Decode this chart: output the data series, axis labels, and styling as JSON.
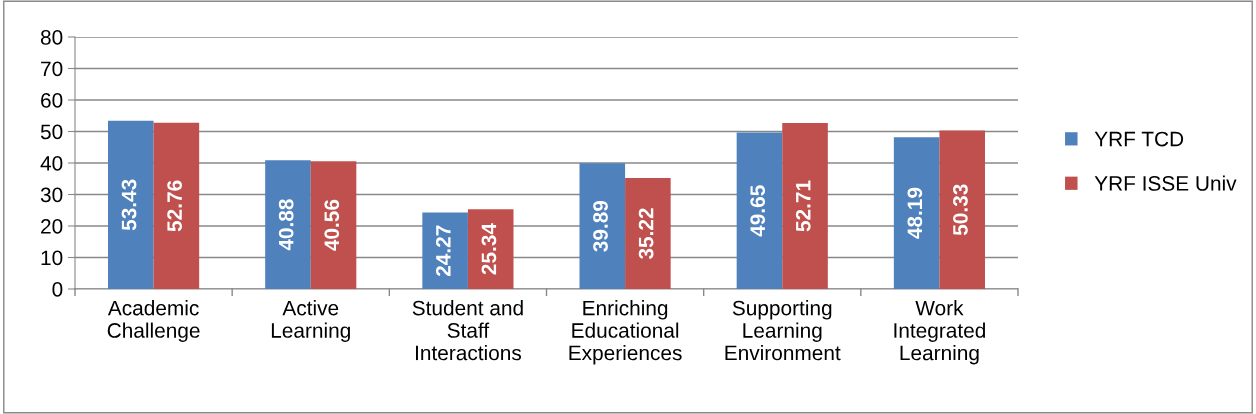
{
  "chart_data": {
    "type": "bar",
    "categories": [
      "Academic\nChallenge",
      "Active\nLearning",
      "Student and\nStaff\nInteractions",
      "Enriching\nEducational\nExperiences",
      "Supporting\nLearning\nEnvironment",
      "Work\nIntegrated\nLearning"
    ],
    "series": [
      {
        "name": "YRF TCD",
        "color": "#4f81bd",
        "values": [
          53.43,
          40.88,
          24.27,
          39.89,
          49.65,
          48.19
        ]
      },
      {
        "name": "YRF ISSE Univ",
        "color": "#c0504d",
        "values": [
          52.76,
          40.56,
          25.34,
          35.22,
          52.71,
          50.33
        ]
      }
    ],
    "ylim": [
      0,
      80
    ],
    "yticks": [
      0,
      10,
      20,
      30,
      40,
      50,
      60,
      70,
      80
    ],
    "grid": "y",
    "legend": "right",
    "data_labels": true
  }
}
